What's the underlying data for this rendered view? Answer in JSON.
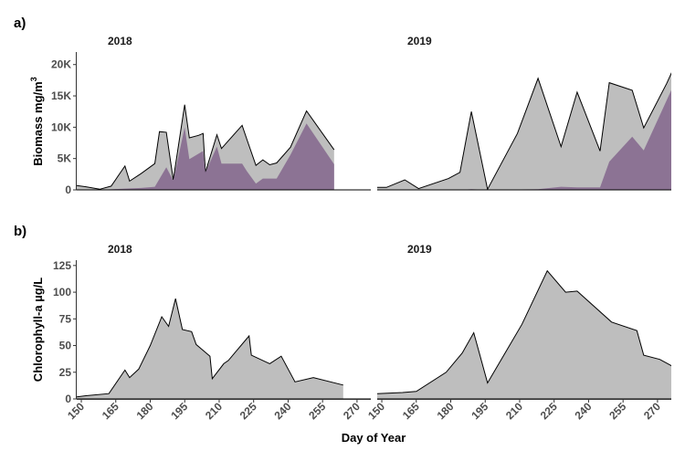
{
  "panels": {
    "a": {
      "tag": "a)",
      "ylabel": "Biomass mg/m",
      "ylabel_sup": "3"
    },
    "b": {
      "tag": "b)",
      "ylabel": "Chlorophyll-a µg/L"
    }
  },
  "facets": [
    "2018",
    "2019"
  ],
  "xlabel": "Day of Year",
  "colors": {
    "total": "#bebebe",
    "subset": "#8c7394",
    "line": "#000000"
  },
  "chart_data": [
    {
      "type": "area",
      "panel": "a",
      "title": "",
      "xlabel": "Day of Year",
      "ylabel": "Biomass mg/m3",
      "x_ticks": [
        150,
        165,
        180,
        195,
        210,
        225,
        240,
        255,
        270
      ],
      "y_ticks": [
        0,
        5000,
        10000,
        15000,
        20000
      ],
      "y_tick_labels": [
        "0",
        "5K",
        "10K",
        "15K",
        "20K"
      ],
      "xlim": [
        148,
        276
      ],
      "ylim": [
        0,
        22000
      ],
      "grid": false,
      "facets": [
        {
          "name": "2018",
          "series": [
            {
              "role": "total",
              "points": [
                [
                  148,
                  700
                ],
                [
                  152,
                  500
                ],
                [
                  158,
                  100
                ],
                [
                  163,
                  600
                ],
                [
                  169,
                  3800
                ],
                [
                  171,
                  1400
                ],
                [
                  176,
                  2600
                ],
                [
                  182,
                  4200
                ],
                [
                  184,
                  9300
                ],
                [
                  187,
                  9200
                ],
                [
                  190,
                  1600
                ],
                [
                  195,
                  13600
                ],
                [
                  197,
                  8300
                ],
                [
                  201,
                  8700
                ],
                [
                  203,
                  9000
                ],
                [
                  204,
                  2800
                ],
                [
                  209,
                  8800
                ],
                [
                  211,
                  6600
                ],
                [
                  220,
                  10300
                ],
                [
                  222,
                  8100
                ],
                [
                  226,
                  3900
                ],
                [
                  229,
                  4800
                ],
                [
                  232,
                  4000
                ],
                [
                  235,
                  4300
                ],
                [
                  241,
                  6800
                ],
                [
                  248,
                  12600
                ],
                [
                  260,
                  6400
                ]
              ]
            },
            {
              "role": "subset",
              "points": [
                [
                  148,
                  0
                ],
                [
                  158,
                  0
                ],
                [
                  169,
                  200
                ],
                [
                  176,
                  300
                ],
                [
                  182,
                  500
                ],
                [
                  187,
                  3600
                ],
                [
                  190,
                  1500
                ],
                [
                  195,
                  10000
                ],
                [
                  197,
                  4900
                ],
                [
                  203,
                  6200
                ],
                [
                  204,
                  2800
                ],
                [
                  209,
                  6900
                ],
                [
                  211,
                  4200
                ],
                [
                  220,
                  4200
                ],
                [
                  222,
                  3000
                ],
                [
                  226,
                  1000
                ],
                [
                  229,
                  1800
                ],
                [
                  235,
                  1800
                ],
                [
                  241,
                  5600
                ],
                [
                  248,
                  10600
                ],
                [
                  260,
                  4100
                ]
              ]
            }
          ]
        },
        {
          "name": "2019",
          "series": [
            {
              "role": "total",
              "points": [
                [
                  148,
                  400
                ],
                [
                  152,
                  400
                ],
                [
                  160,
                  1600
                ],
                [
                  166,
                  200
                ],
                [
                  179,
                  1800
                ],
                [
                  184,
                  2800
                ],
                [
                  189,
                  12500
                ],
                [
                  196,
                  100
                ],
                [
                  209,
                  9000
                ],
                [
                  218,
                  17800
                ],
                [
                  228,
                  6900
                ],
                [
                  235,
                  15600
                ],
                [
                  245,
                  6200
                ],
                [
                  249,
                  17100
                ],
                [
                  259,
                  15900
                ],
                [
                  264,
                  9900
                ],
                [
                  274,
                  17000
                ],
                [
                  279,
                  21000
                ]
              ]
            },
            {
              "role": "subset",
              "points": [
                [
                  148,
                  0
                ],
                [
                  184,
                  0
                ],
                [
                  189,
                  100
                ],
                [
                  196,
                  0
                ],
                [
                  218,
                  100
                ],
                [
                  228,
                  500
                ],
                [
                  235,
                  400
                ],
                [
                  245,
                  400
                ],
                [
                  249,
                  4500
                ],
                [
                  259,
                  8500
                ],
                [
                  264,
                  6300
                ],
                [
                  279,
                  18300
                ]
              ]
            }
          ]
        }
      ]
    },
    {
      "type": "area",
      "panel": "b",
      "title": "",
      "xlabel": "Day of Year",
      "ylabel": "Chlorophyll-a µg/L",
      "x_ticks": [
        150,
        165,
        180,
        195,
        210,
        225,
        240,
        255,
        270
      ],
      "y_ticks": [
        0,
        25,
        50,
        75,
        100,
        125
      ],
      "y_tick_labels": [
        "0",
        "25",
        "50",
        "75",
        "100",
        "125"
      ],
      "xlim": [
        148,
        276
      ],
      "ylim": [
        0,
        130
      ],
      "grid": false,
      "facets": [
        {
          "name": "2018",
          "series": [
            {
              "role": "total",
              "points": [
                [
                  148,
                  2
                ],
                [
                  152,
                  3
                ],
                [
                  162,
                  5
                ],
                [
                  169,
                  27
                ],
                [
                  171,
                  20
                ],
                [
                  175,
                  28
                ],
                [
                  180,
                  50
                ],
                [
                  185,
                  77
                ],
                [
                  188,
                  68
                ],
                [
                  191,
                  94
                ],
                [
                  194,
                  65
                ],
                [
                  198,
                  63
                ],
                [
                  200,
                  51
                ],
                [
                  206,
                  40
                ],
                [
                  207,
                  19
                ],
                [
                  212,
                  33
                ],
                [
                  214,
                  36
                ],
                [
                  223,
                  59
                ],
                [
                  224,
                  41
                ],
                [
                  232,
                  33
                ],
                [
                  237,
                  40
                ],
                [
                  243,
                  16
                ],
                [
                  251,
                  20
                ],
                [
                  264,
                  13
                ]
              ]
            }
          ]
        },
        {
          "name": "2019",
          "series": [
            {
              "role": "total",
              "points": [
                [
                  148,
                  5
                ],
                [
                  159,
                  6
                ],
                [
                  165,
                  7
                ],
                [
                  178,
                  25
                ],
                [
                  185,
                  43
                ],
                [
                  190,
                  62
                ],
                [
                  196,
                  15
                ],
                [
                  211,
                  70
                ],
                [
                  222,
                  120
                ],
                [
                  230,
                  100
                ],
                [
                  235,
                  101
                ],
                [
                  250,
                  72
                ],
                [
                  261,
                  64
                ],
                [
                  264,
                  41
                ],
                [
                  271,
                  37
                ],
                [
                  277,
                  30
                ]
              ]
            }
          ]
        }
      ]
    }
  ]
}
